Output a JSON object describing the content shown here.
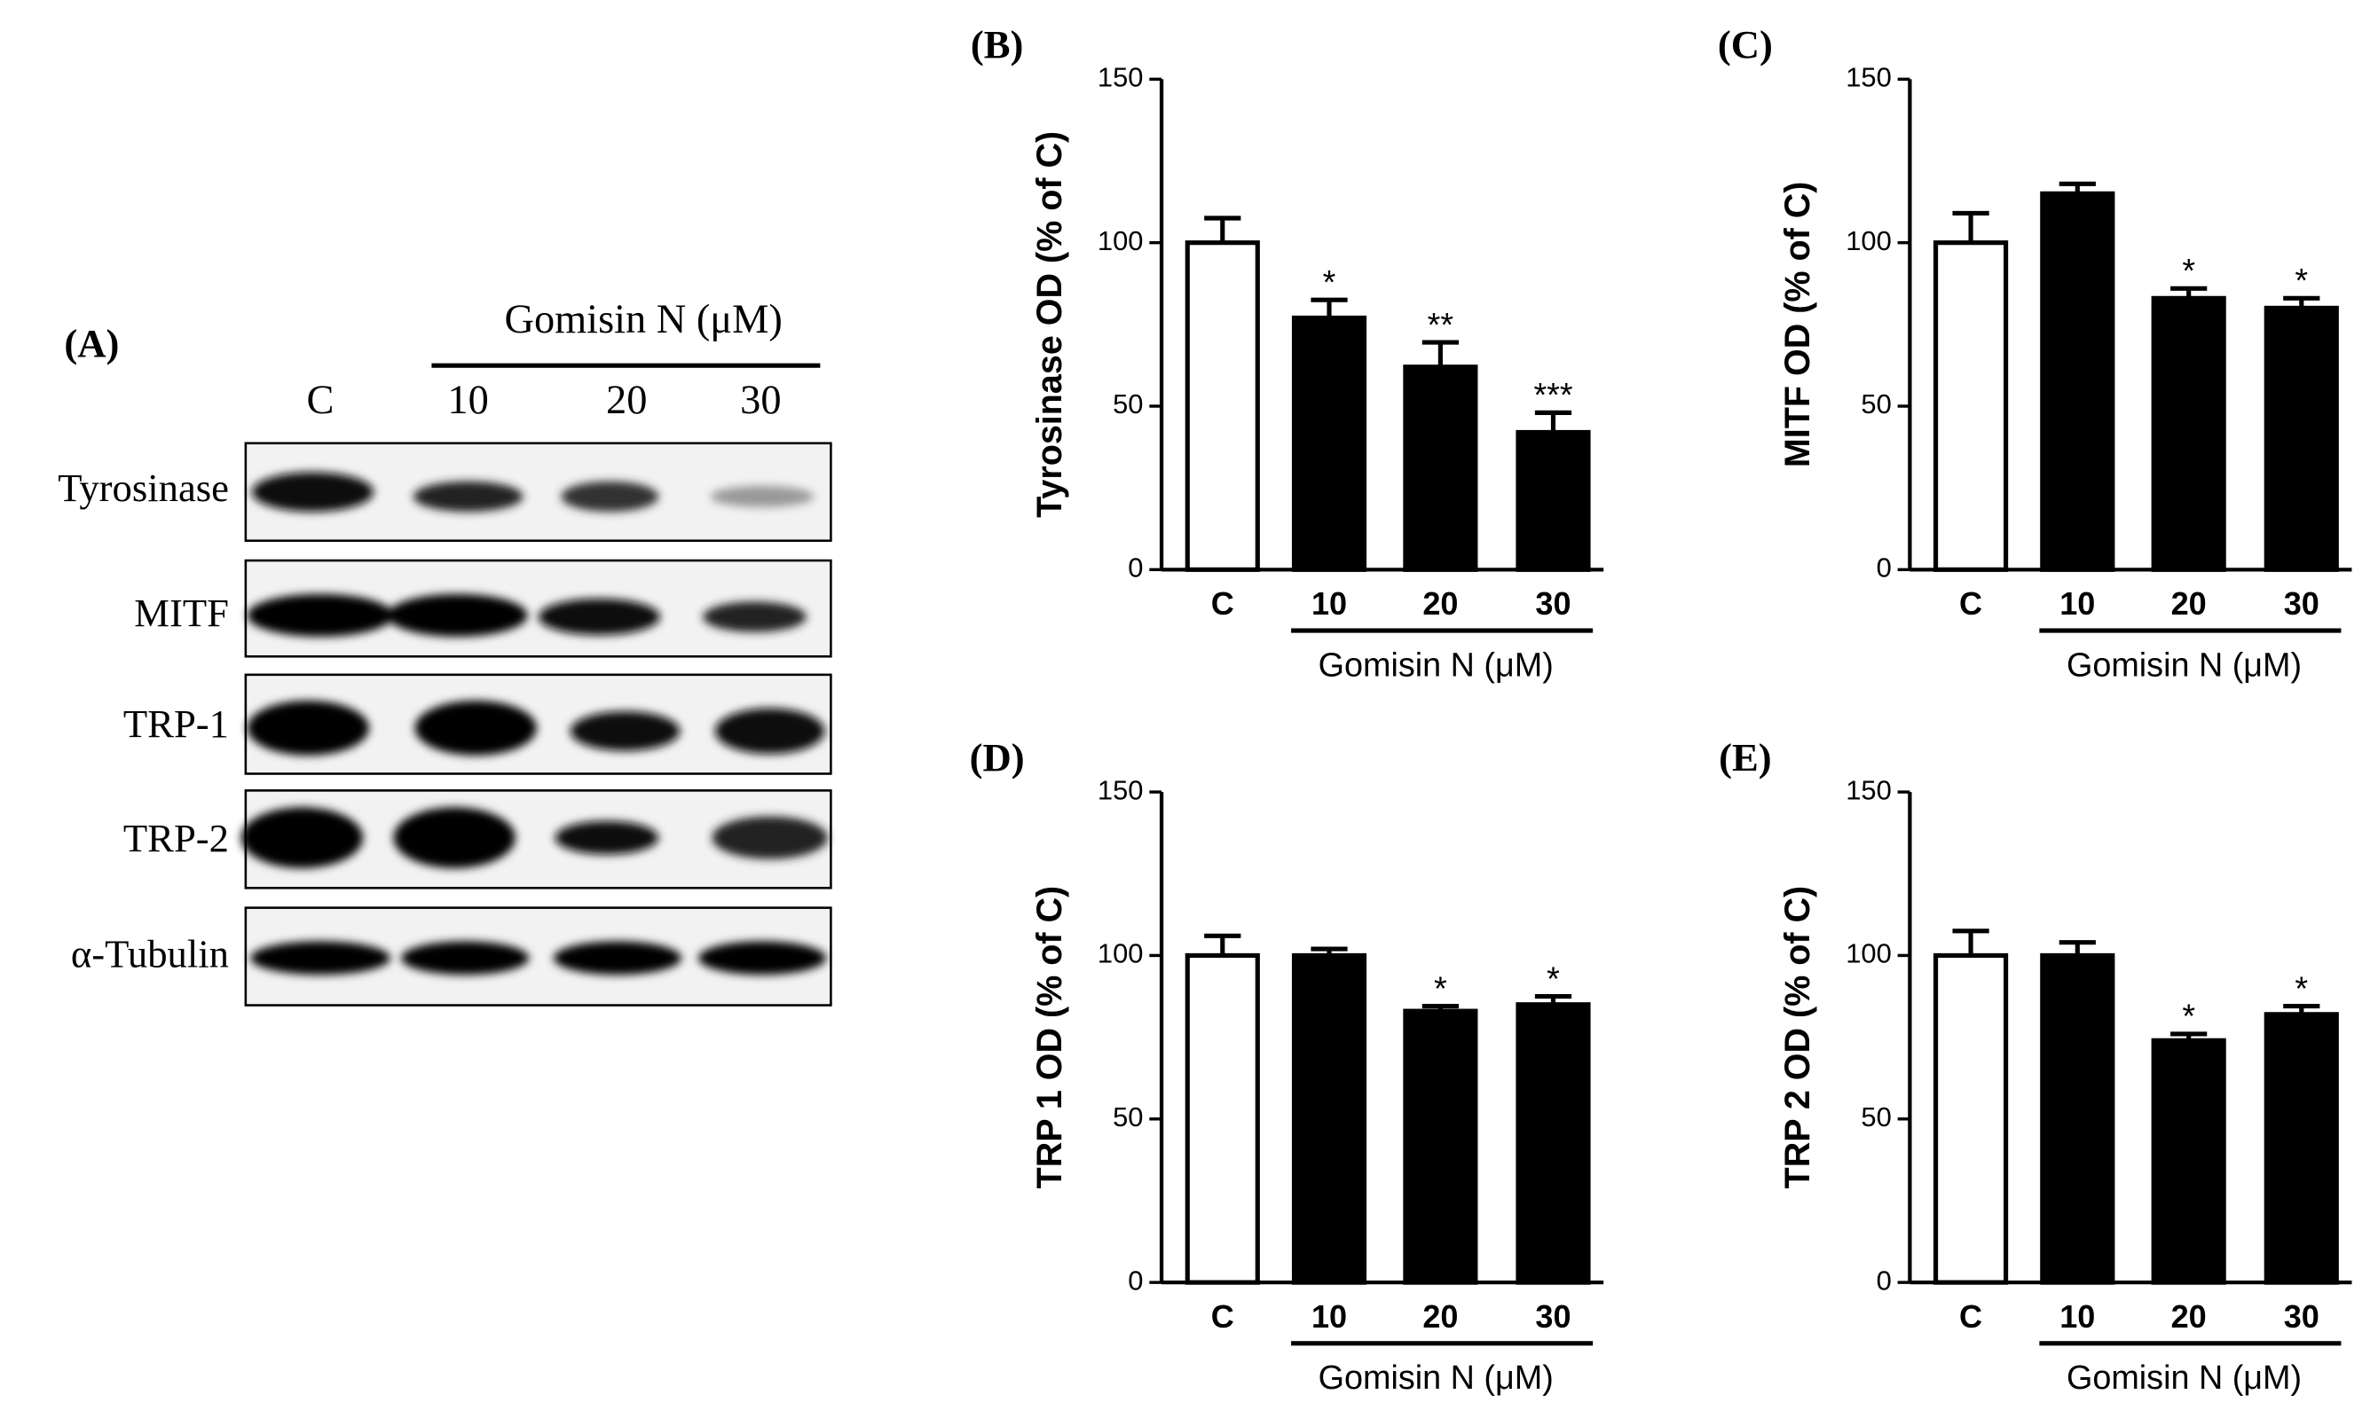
{
  "chart_data": [
    {
      "type": "bar",
      "panel_label": "(B)",
      "y_label": "Tyrosinase OD (% of C)",
      "x_label": "Gomisin N (μM)",
      "categories": [
        "C",
        "10",
        "20",
        "30"
      ],
      "values": [
        100,
        77,
        62,
        42
      ],
      "errors": [
        7.5,
        5.5,
        7.5,
        6
      ],
      "annotations": [
        null,
        "*",
        "**",
        "***"
      ],
      "colors": [
        "#ffffff",
        "#000000",
        "#000000",
        "#000000"
      ],
      "ylim": [
        0,
        150
      ],
      "yticks": [
        0,
        50,
        100,
        150
      ]
    },
    {
      "type": "bar",
      "panel_label": "(C)",
      "y_label": "MITF OD (% of C)",
      "x_label": "Gomisin N (μM)",
      "categories": [
        "C",
        "10",
        "20",
        "30"
      ],
      "values": [
        100,
        115,
        83,
        80
      ],
      "errors": [
        9,
        3,
        3,
        3
      ],
      "annotations": [
        null,
        null,
        "*",
        "*"
      ],
      "colors": [
        "#ffffff",
        "#000000",
        "#000000",
        "#000000"
      ],
      "ylim": [
        0,
        150
      ],
      "yticks": [
        0,
        50,
        100,
        150
      ]
    },
    {
      "type": "bar",
      "panel_label": "(D)",
      "y_label": "TRP 1 OD (% of C)",
      "x_label": "Gomisin N (μM)",
      "categories": [
        "C",
        "10",
        "20",
        "30"
      ],
      "values": [
        100,
        100,
        83,
        85
      ],
      "errors": [
        6,
        2,
        1.5,
        2.5
      ],
      "annotations": [
        null,
        null,
        "*",
        "*"
      ],
      "colors": [
        "#ffffff",
        "#000000",
        "#000000",
        "#000000"
      ],
      "ylim": [
        0,
        150
      ],
      "yticks": [
        0,
        50,
        100,
        150
      ]
    },
    {
      "type": "bar",
      "panel_label": "(E)",
      "y_label": "TRP 2 OD (% of C)",
      "x_label": "Gomisin N (μM)",
      "categories": [
        "C",
        "10",
        "20",
        "30"
      ],
      "values": [
        100,
        100,
        74,
        82
      ],
      "errors": [
        7.5,
        4,
        2,
        2.5
      ],
      "annotations": [
        null,
        null,
        "*",
        "*"
      ],
      "colors": [
        "#ffffff",
        "#000000",
        "#000000",
        "#000000"
      ],
      "ylim": [
        0,
        150
      ],
      "yticks": [
        0,
        50,
        100,
        150
      ]
    }
  ],
  "blot": {
    "panel_label": "(A)",
    "treatment_label": "Gomisin N (μM)",
    "lanes": [
      "C",
      "10",
      "20",
      "30"
    ],
    "proteins": [
      "Tyrosinase",
      "MITF",
      "TRP-1",
      "TRP-2",
      "α-Tubulin"
    ]
  }
}
